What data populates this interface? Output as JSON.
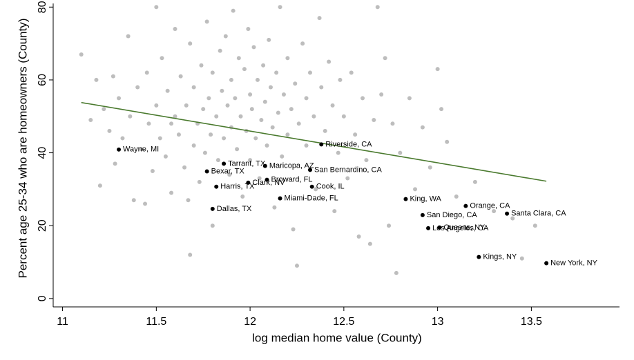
{
  "chart_data": {
    "type": "scatter",
    "x_label": "log median home value (County)",
    "y_label": "Percent age 25-34 who are homeowners (County)",
    "xlim": [
      10.95,
      13.97
    ],
    "ylim": [
      -2.3,
      81
    ],
    "xticks": [
      11,
      11.5,
      12,
      12.5,
      13,
      13.5
    ],
    "yticks": [
      0,
      20,
      40,
      60,
      80
    ],
    "grid": false,
    "series": [
      {
        "color": "#bdbdbd",
        "x": [
          11.1,
          11.18,
          11.2,
          11.22,
          11.25,
          11.28,
          11.3,
          11.32,
          11.35,
          11.36,
          11.38,
          11.4,
          11.42,
          11.45,
          11.46,
          11.48,
          11.5,
          11.5,
          11.52,
          11.53,
          11.55,
          11.56,
          11.58,
          11.6,
          11.6,
          11.62,
          11.63,
          11.65,
          11.66,
          11.68,
          11.68,
          11.7,
          11.7,
          11.72,
          11.73,
          11.74,
          11.75,
          11.76,
          11.77,
          11.78,
          11.79,
          11.8,
          11.8,
          11.82,
          11.83,
          11.84,
          11.85,
          11.86,
          11.87,
          11.88,
          11.89,
          11.9,
          11.9,
          11.91,
          11.92,
          11.93,
          11.94,
          11.95,
          11.96,
          11.97,
          11.98,
          11.99,
          12.0,
          12.0,
          12.01,
          12.02,
          12.03,
          12.04,
          12.05,
          12.06,
          12.07,
          12.08,
          12.09,
          12.1,
          12.11,
          12.12,
          12.13,
          12.14,
          12.15,
          12.16,
          12.17,
          12.18,
          12.2,
          12.2,
          12.22,
          12.23,
          12.24,
          12.25,
          12.26,
          12.28,
          12.3,
          12.3,
          12.32,
          12.34,
          12.35,
          12.37,
          12.38,
          12.4,
          12.42,
          12.44,
          12.45,
          12.47,
          12.48,
          12.5,
          12.52,
          12.54,
          12.56,
          12.58,
          12.6,
          12.62,
          12.64,
          12.66,
          12.68,
          12.7,
          12.72,
          12.74,
          12.76,
          12.78,
          12.8,
          12.85,
          12.88,
          12.92,
          12.96,
          13.0,
          13.02,
          13.05,
          13.1,
          13.2,
          13.3,
          13.4,
          13.45,
          13.52,
          11.15,
          11.27,
          11.44,
          11.58,
          11.67
        ],
        "values": [
          67,
          60,
          31,
          52,
          46,
          37,
          55,
          44,
          72,
          50,
          27,
          58,
          41,
          62,
          48,
          35,
          53,
          80,
          44,
          66,
          39,
          57,
          29,
          50,
          74,
          45,
          61,
          36,
          53,
          12,
          70,
          42,
          58,
          48,
          32,
          64,
          52,
          40,
          76,
          55,
          45,
          62,
          20,
          50,
          38,
          68,
          57,
          44,
          72,
          53,
          34,
          60,
          47,
          79,
          55,
          41,
          66,
          50,
          28,
          63,
          46,
          74,
          56,
          38,
          52,
          69,
          44,
          60,
          33,
          49,
          64,
          54,
          42,
          71,
          58,
          47,
          25,
          62,
          51,
          80,
          39,
          56,
          45,
          66,
          52,
          19,
          59,
          9,
          48,
          70,
          55,
          42,
          62,
          50,
          30,
          77,
          58,
          46,
          65,
          53,
          24,
          40,
          60,
          50,
          33,
          62,
          45,
          17,
          55,
          38,
          15,
          49,
          80,
          56,
          66,
          20,
          48,
          7,
          40,
          55,
          30,
          47,
          36,
          63,
          52,
          43,
          28,
          32,
          24,
          22,
          11,
          20,
          49,
          61,
          26,
          48,
          27
        ]
      },
      {
        "color": "#000000",
        "x": [
          11.3,
          11.86,
          11.77,
          12.08,
          12.32,
          12.09,
          11.99,
          11.82,
          12.33,
          12.16,
          11.8,
          12.38,
          12.83,
          13.15,
          12.92,
          13.37,
          13.01,
          12.95,
          13.22,
          13.58
        ],
        "values": [
          40.9,
          37.0,
          34.9,
          36.4,
          35.3,
          32.6,
          31.8,
          30.7,
          30.7,
          27.5,
          24.6,
          42.3,
          27.3,
          25.4,
          22.9,
          23.3,
          19.5,
          19.3,
          11.4,
          9.7
        ],
        "labels": [
          "Wayne, MI",
          "Tarrant, TX",
          "Bexar, TX",
          "Maricopa, AZ",
          "San Bernardino, CA",
          "Broward, FL",
          "Clark, NV",
          "Harris, TX",
          "Cook, IL",
          "Miami-Dade, FL",
          "Dallas, TX",
          "Riverside, CA",
          "King, WA",
          "Orange, CA",
          "San Diego, CA",
          "Santa Clara, CA",
          "Queens, NY",
          "Los Angeles, CA",
          "Kings, NY",
          "New York, NY"
        ]
      }
    ],
    "fit_line": {
      "color": "#4a7a2e",
      "x": [
        11.1,
        13.58
      ],
      "values": [
        53.8,
        32.2
      ]
    }
  }
}
